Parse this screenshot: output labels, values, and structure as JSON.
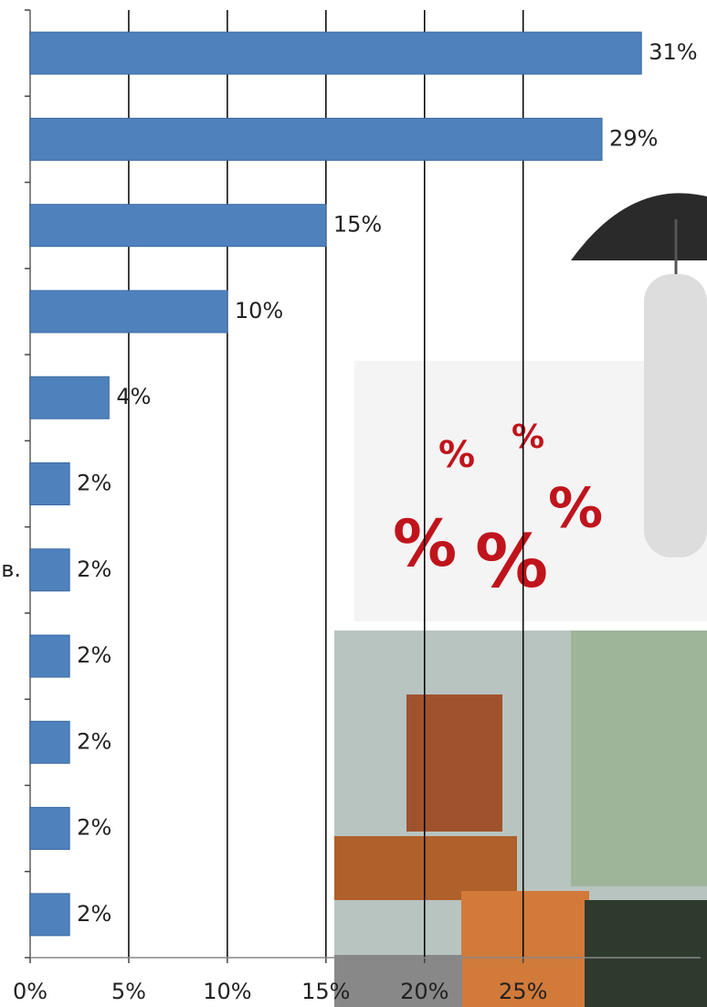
{
  "chart_data": {
    "type": "bar",
    "orientation": "horizontal",
    "categories": [
      null,
      null,
      null,
      null,
      null,
      null,
      "в.",
      null,
      null,
      null,
      null
    ],
    "values": [
      31,
      29,
      15,
      10,
      4,
      2,
      2,
      2,
      2,
      2,
      2
    ],
    "value_labels": [
      "31%",
      "29%",
      "15%",
      "10%",
      "4%",
      "2%",
      "2%",
      "2%",
      "2%",
      "2%",
      "2%"
    ],
    "color": "#4f81bd",
    "xlim": [
      0,
      34
    ],
    "xticks": [
      {
        "value": 0,
        "label": "0%"
      },
      {
        "value": 5,
        "label": "5%"
      },
      {
        "value": 10,
        "label": "10%"
      },
      {
        "value": 15,
        "label": "15%"
      },
      {
        "value": 20,
        "label": "20%"
      },
      {
        "value": 25,
        "label": "25%"
      }
    ],
    "grid": true
  }
}
